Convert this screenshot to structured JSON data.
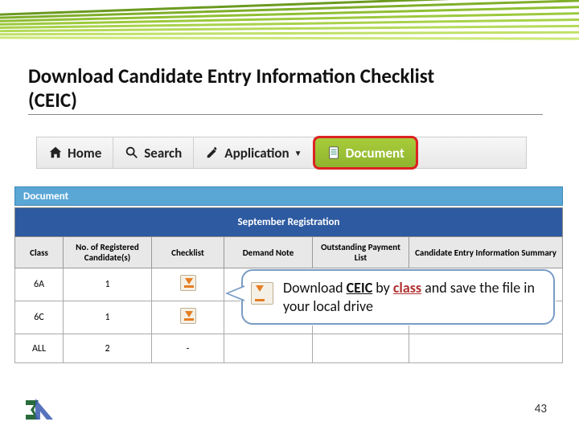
{
  "slide": {
    "title_line1": "Download Candidate Entry Information Checklist",
    "title_line2": "(CEIC)",
    "page_number": "43"
  },
  "decoration": {
    "stripe_colors": [
      "#6b9a1f",
      "#7fae2a",
      "#8fbf32",
      "#9cc93d",
      "#a8d24a",
      "#b4da58",
      "#c0e168",
      "#cce878"
    ]
  },
  "nav": {
    "items": [
      {
        "label": "Home",
        "icon": "home-icon",
        "active": false
      },
      {
        "label": "Search",
        "icon": "search-icon",
        "active": false
      },
      {
        "label": "Application",
        "icon": "edit-icon",
        "dropdown": true,
        "active": false
      },
      {
        "label": "Document",
        "icon": "document-icon",
        "active": true
      }
    ]
  },
  "panel": {
    "header": "Document",
    "section_title": "September Registration",
    "columns": [
      "Class",
      "No. of Registered Candidate(s)",
      "Checklist",
      "Demand Note",
      "Outstanding Payment List",
      "Candidate Entry Information Summary"
    ],
    "rows": [
      {
        "class": "6A",
        "count": "1",
        "checklist": true
      },
      {
        "class": "6C",
        "count": "1",
        "checklist": true
      },
      {
        "class": "ALL",
        "count": "2",
        "checklist": false
      }
    ]
  },
  "callout": {
    "pre": "Download ",
    "ceic": "CEIC",
    "mid": " by ",
    "classword": "class",
    "post": " and save the file in your local drive"
  },
  "colors": {
    "nav_active_bg": "#8fb52f",
    "nav_active_border": "#d22",
    "doc_header_bg": "#5aa7d6",
    "section_bg": "#2d5aa0",
    "callout_border": "#7a9cc4"
  }
}
